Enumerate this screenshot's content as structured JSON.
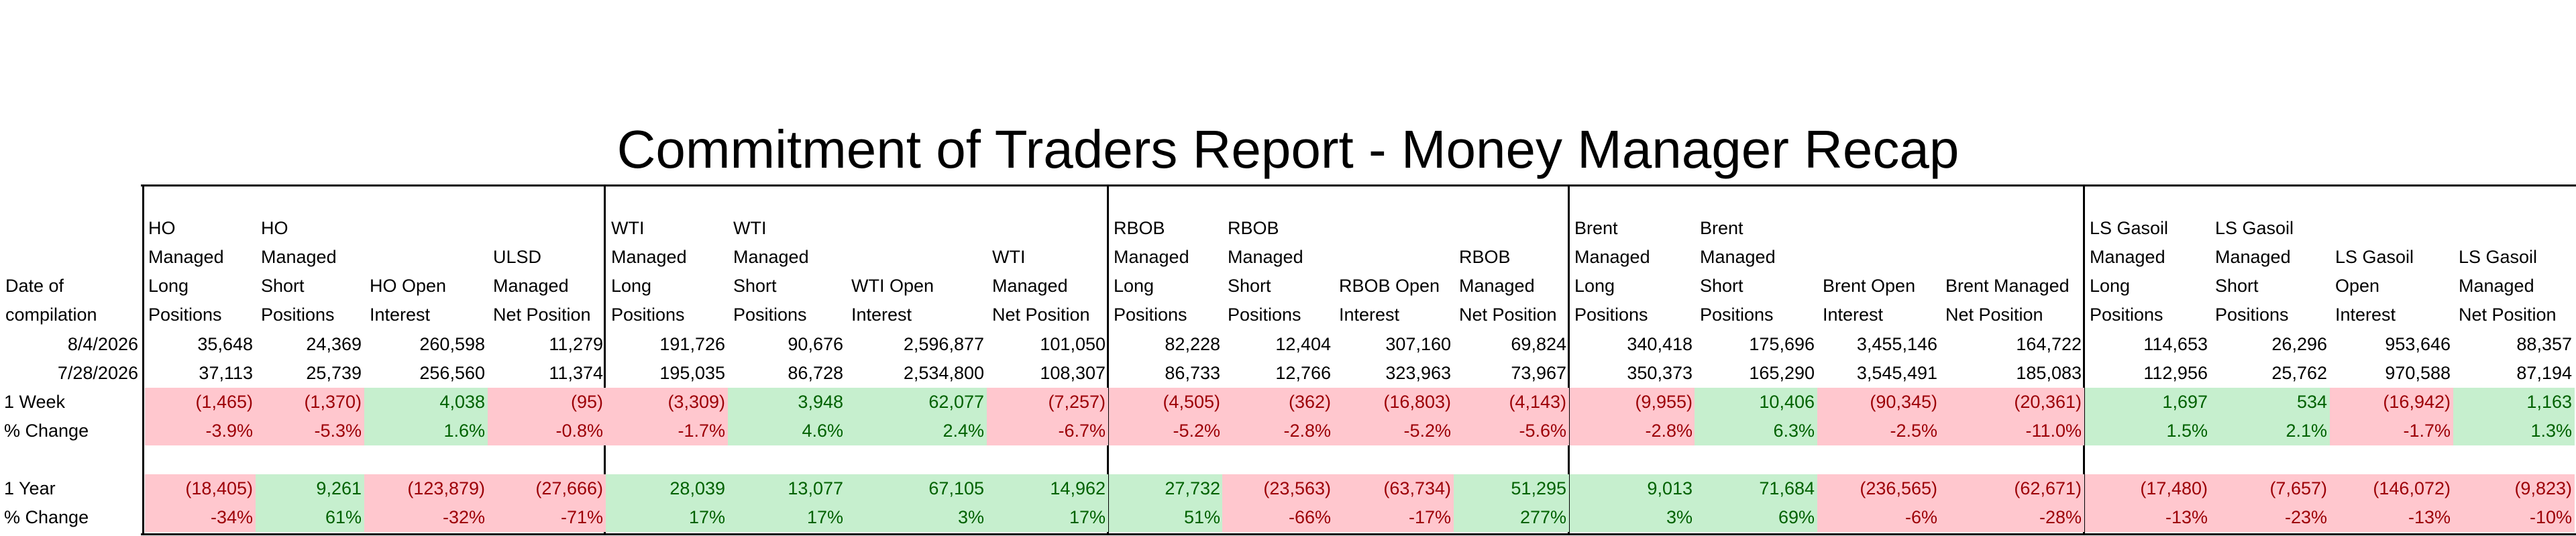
{
  "title": "Commitment of Traders Report - Money Manager Recap",
  "colors": {
    "negative_bg": "#ffc7ce",
    "negative_text": "#9c0006",
    "positive_bg": "#c6efce",
    "positive_text": "#006100"
  },
  "headers": [
    "Date of\ncompilation",
    "HO\nManaged\nLong\nPositions",
    "HO\nManaged\nShort\nPositions",
    "HO Open\nInterest",
    "ULSD\nManaged\nNet Position",
    "WTI\nManaged\nLong\nPositions",
    "WTI\nManaged\nShort\nPositions",
    "WTI Open\nInterest",
    "WTI\nManaged\nNet Position",
    "RBOB\nManaged\nLong\nPositions",
    "RBOB\nManaged\nShort\nPositions",
    "RBOB Open\nInterest",
    "RBOB\nManaged\nNet Position",
    "Brent\nManaged\nLong\nPositions",
    "Brent\nManaged\nShort\nPositions",
    "Brent Open\nInterest",
    "Brent Managed\nNet Position",
    "LS Gasoil\nManaged\nLong\nPositions",
    "LS Gasoil\nManaged\nShort\nPositions",
    "LS Gasoil\nOpen\nInterest",
    "LS Gasoil\nManaged\nNet Position"
  ],
  "rows": {
    "r1": {
      "label": "8/4/2026",
      "values": [
        "35,648",
        "24,369",
        "260,598",
        "11,279",
        "191,726",
        "90,676",
        "2,596,877",
        "101,050",
        "82,228",
        "12,404",
        "307,160",
        "69,824",
        "340,418",
        "175,696",
        "3,455,146",
        "164,722",
        "114,653",
        "26,296",
        "953,646",
        "88,357"
      ]
    },
    "r2": {
      "label": "7/28/2026",
      "values": [
        "37,113",
        "25,739",
        "256,560",
        "11,374",
        "195,035",
        "86,728",
        "2,534,800",
        "108,307",
        "86,733",
        "12,766",
        "323,963",
        "73,967",
        "350,373",
        "165,290",
        "3,545,491",
        "185,083",
        "112,956",
        "25,762",
        "970,588",
        "87,194"
      ]
    },
    "week": {
      "label": "1 Week",
      "values": [
        "(1,465)",
        "(1,370)",
        "4,038",
        "(95)",
        "(3,309)",
        "3,948",
        "62,077",
        "(7,257)",
        "(4,505)",
        "(362)",
        "(16,803)",
        "(4,143)",
        "(9,955)",
        "10,406",
        "(90,345)",
        "(20,361)",
        "1,697",
        "534",
        "(16,942)",
        "1,163"
      ]
    },
    "weekpct": {
      "label": "% Change",
      "values": [
        "-3.9%",
        "-5.3%",
        "1.6%",
        "-0.8%",
        "-1.7%",
        "4.6%",
        "2.4%",
        "-6.7%",
        "-5.2%",
        "-2.8%",
        "-5.2%",
        "-5.6%",
        "-2.8%",
        "6.3%",
        "-2.5%",
        "-11.0%",
        "1.5%",
        "2.1%",
        "-1.7%",
        "1.3%"
      ]
    },
    "year": {
      "label": "1 Year",
      "values": [
        "(18,405)",
        "9,261",
        "(123,879)",
        "(27,666)",
        "28,039",
        "13,077",
        "67,105",
        "14,962",
        "27,732",
        "(23,563)",
        "(63,734)",
        "51,295",
        "9,013",
        "71,684",
        "(236,565)",
        "(62,671)",
        "(17,480)",
        "(7,657)",
        "(146,072)",
        "(9,823)"
      ]
    },
    "yearpct": {
      "label": "% Change",
      "values": [
        "-34%",
        "61%",
        "-32%",
        "-71%",
        "17%",
        "17%",
        "3%",
        "17%",
        "51%",
        "-66%",
        "-17%",
        "277%",
        "3%",
        "69%",
        "-6%",
        "-28%",
        "-13%",
        "-23%",
        "-13%",
        "-10%"
      ]
    }
  }
}
